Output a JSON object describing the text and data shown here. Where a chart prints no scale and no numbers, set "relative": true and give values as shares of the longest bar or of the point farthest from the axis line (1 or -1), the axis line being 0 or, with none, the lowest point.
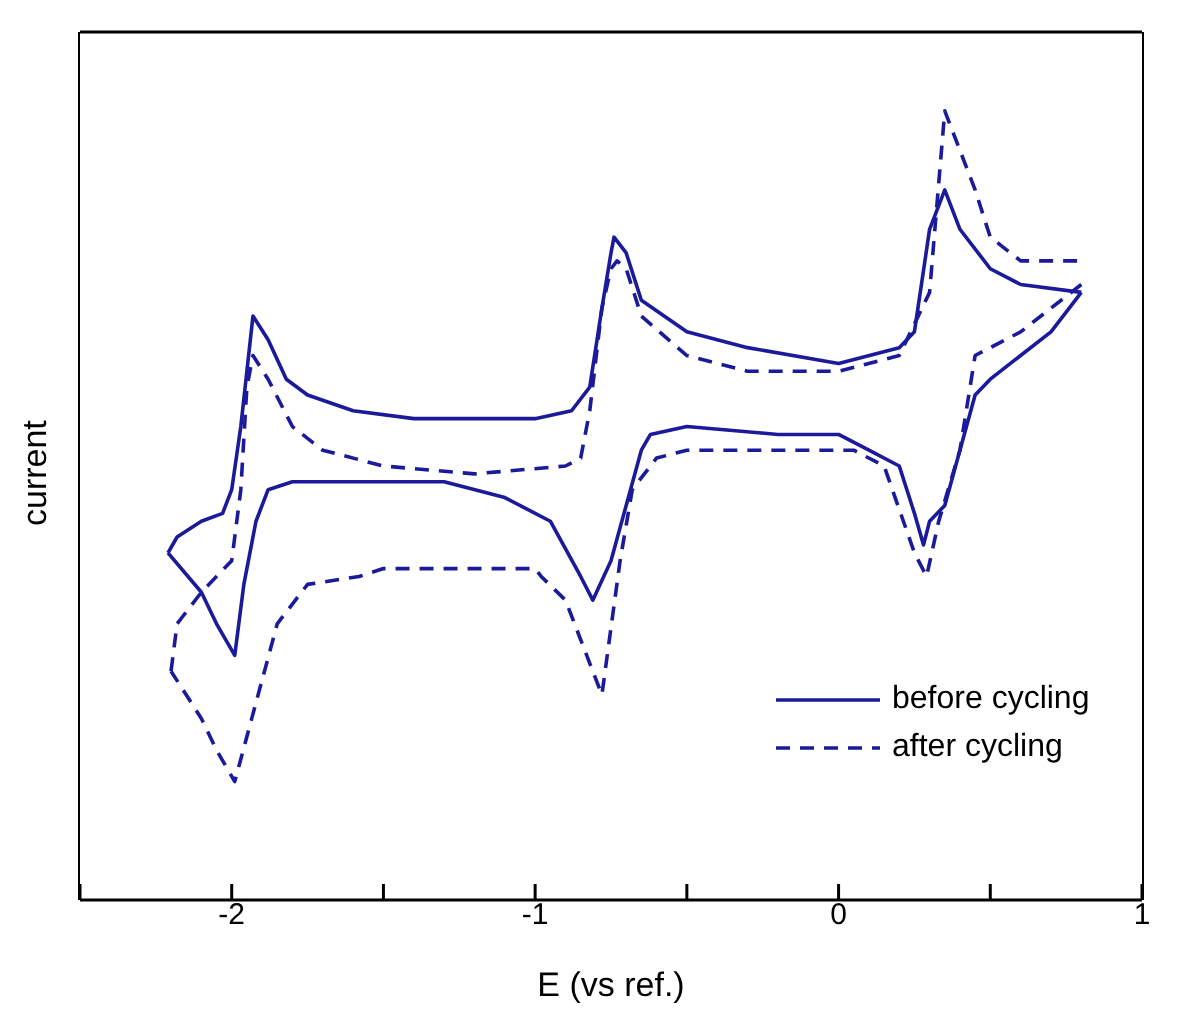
{
  "chart_data": {
    "type": "line",
    "relative": true,
    "xlabel": "E (vs ref.)",
    "ylabel": "current",
    "xlim": [
      -2.5,
      1
    ],
    "xticks": [
      {
        "value": -2.5,
        "label": null
      },
      -2,
      {
        "value": -1.5,
        "label": null
      },
      -1,
      {
        "value": -0.5,
        "label": null
      },
      0,
      {
        "value": 0.5,
        "label": null
      },
      1
    ],
    "legend": "bottom right",
    "marker": "none",
    "series": [
      {
        "name": "before cycling",
        "color": "#1a1a9a",
        "line_style": "solid",
        "x": [
          -2.21,
          -2.18,
          -2.1,
          -2.03,
          -2.0,
          -1.97,
          -1.95,
          -1.93,
          -1.88,
          -1.82,
          -1.75,
          -1.6,
          -1.4,
          -1.0,
          -0.88,
          -0.82,
          -0.78,
          -0.75,
          -0.74,
          -0.7,
          -0.65,
          -0.5,
          -0.3,
          0.0,
          0.2,
          0.25,
          0.3,
          0.35,
          0.4,
          0.5,
          0.6,
          0.8
        ],
        "values": [
          0.44,
          0.46,
          0.48,
          0.49,
          0.52,
          0.6,
          0.67,
          0.74,
          0.71,
          0.66,
          0.64,
          0.62,
          0.61,
          0.61,
          0.62,
          0.65,
          0.75,
          0.82,
          0.84,
          0.82,
          0.76,
          0.72,
          0.7,
          0.68,
          0.7,
          0.72,
          0.85,
          0.9,
          0.85,
          0.8,
          0.78,
          0.77
        ]
      },
      {
        "color": "#1a1a9a",
        "line_style": "solid",
        "x": [
          0.8,
          0.7,
          0.6,
          0.5,
          0.45,
          0.4,
          0.35,
          0.3,
          0.28,
          0.25,
          0.2,
          0.1,
          0.0,
          -0.2,
          -0.5,
          -0.62,
          -0.65,
          -0.7,
          -0.75,
          -0.81,
          -0.85,
          -0.95,
          -1.1,
          -1.3,
          -1.6,
          -1.8,
          -1.88,
          -1.92,
          -1.96,
          -1.99,
          -2.05,
          -2.1,
          -2.21
        ],
        "values": [
          0.77,
          0.72,
          0.69,
          0.66,
          0.64,
          0.57,
          0.5,
          0.48,
          0.45,
          0.49,
          0.55,
          0.57,
          0.59,
          0.59,
          0.6,
          0.59,
          0.57,
          0.5,
          0.43,
          0.38,
          0.41,
          0.48,
          0.51,
          0.53,
          0.53,
          0.53,
          0.52,
          0.48,
          0.4,
          0.31,
          0.35,
          0.39,
          0.44
        ]
      },
      {
        "name": "after cycling",
        "color": "#1a1a9a",
        "line_style": "dashed",
        "x": [
          -2.2,
          -2.18,
          -2.1,
          -2.0,
          -1.97,
          -1.95,
          -1.93,
          -1.88,
          -1.8,
          -1.7,
          -1.5,
          -1.2,
          -0.9,
          -0.85,
          -0.82,
          -0.78,
          -0.75,
          -0.73,
          -0.7,
          -0.65,
          -0.5,
          -0.3,
          0.0,
          0.2,
          0.3,
          0.35,
          0.45,
          0.5,
          0.6,
          0.8
        ],
        "values": [
          0.29,
          0.35,
          0.39,
          0.43,
          0.52,
          0.65,
          0.69,
          0.66,
          0.6,
          0.57,
          0.55,
          0.54,
          0.55,
          0.56,
          0.62,
          0.75,
          0.8,
          0.81,
          0.8,
          0.74,
          0.69,
          0.67,
          0.67,
          0.69,
          0.77,
          1.0,
          0.9,
          0.84,
          0.81,
          0.81
        ]
      },
      {
        "color": "#1a1a9a",
        "line_style": "dashed",
        "x": [
          0.8,
          0.6,
          0.5,
          0.45,
          0.4,
          0.33,
          0.29,
          0.25,
          0.15,
          0.05,
          -0.2,
          -0.5,
          -0.6,
          -0.68,
          -0.72,
          -0.78,
          -0.82,
          -0.9,
          -0.98,
          -1.0,
          -1.3,
          -1.4,
          -1.5,
          -1.58,
          -1.75,
          -1.85,
          -1.92,
          -1.99,
          -2.05,
          -2.1,
          -2.2
        ],
        "values": [
          0.78,
          0.72,
          0.7,
          0.69,
          0.57,
          0.48,
          0.41,
          0.44,
          0.55,
          0.57,
          0.57,
          0.57,
          0.56,
          0.52,
          0.43,
          0.26,
          0.3,
          0.38,
          0.41,
          0.42,
          0.42,
          0.42,
          0.42,
          0.41,
          0.4,
          0.35,
          0.25,
          0.15,
          0.19,
          0.23,
          0.29
        ]
      }
    ]
  }
}
